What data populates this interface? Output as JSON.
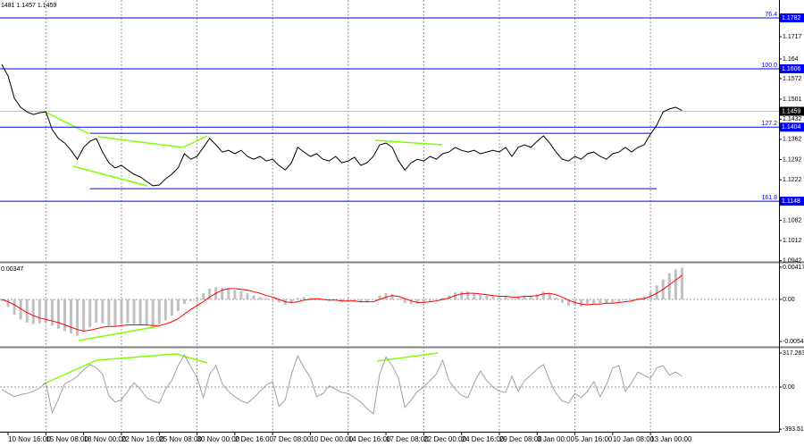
{
  "chart_data": [
    {
      "type": "line",
      "title": "1481 1.1457 1.1459",
      "categories": [
        null,
        "10 Nov 16:00",
        null,
        null,
        null,
        null,
        null,
        "15 Nov 08:00",
        null,
        null,
        null,
        null,
        null,
        "18 Nov 00:00",
        null,
        null,
        null,
        null,
        null,
        "22 Nov 16:00",
        null,
        null,
        null,
        null,
        null,
        "25 Nov 08:00",
        null,
        null,
        null,
        null,
        null,
        "30 Nov 00:00",
        null,
        null,
        null,
        null,
        null,
        "2 Dec 16:00",
        null,
        null,
        null,
        null,
        null,
        "7 Dec 08:00",
        null,
        null,
        null,
        null,
        null,
        "10 Dec 00:00",
        null,
        null,
        null,
        null,
        null,
        "14 Dec 16:00",
        null,
        null,
        null,
        null,
        null,
        "17 Dec 08:00",
        null,
        null,
        null,
        null,
        null,
        "22 Dec 00:00",
        null,
        null,
        null,
        null,
        null,
        "24 Dec 16:00",
        null,
        null,
        null,
        null,
        null,
        "29 Dec 08:00",
        null,
        null,
        null,
        null,
        null,
        "3 Jan 00:00",
        null,
        null,
        null,
        null,
        null,
        "5 Jan 16:00",
        null,
        null,
        null,
        null,
        null,
        "10 Jan 08:00",
        null,
        null,
        null,
        null,
        null,
        "13 Jan 00:00",
        null,
        null,
        null,
        null,
        null
      ],
      "series": [
        {
          "color": "#000000",
          "values": [
            1.1621,
            1.1581,
            1.1504,
            1.1473,
            1.1457,
            1.1448,
            1.1454,
            1.1457,
            1.1396,
            1.1365,
            1.1349,
            1.1324,
            1.1293,
            1.1334,
            1.1355,
            1.1365,
            1.1318,
            1.1281,
            1.1263,
            1.1272,
            1.1256,
            1.1241,
            1.1232,
            1.1216,
            1.1201,
            1.1204,
            1.1225,
            1.1241,
            1.1263,
            1.1312,
            1.1293,
            1.1303,
            1.1334,
            1.1365,
            1.1343,
            1.1318,
            1.1324,
            1.1312,
            1.1324,
            1.1303,
            1.1293,
            1.1303,
            1.1287,
            1.1293,
            1.1272,
            1.1256,
            1.1281,
            1.1334,
            1.1318,
            1.1303,
            1.1312,
            1.1293,
            1.1287,
            1.1303,
            1.1281,
            1.1287,
            1.13,
            1.1272,
            1.1281,
            1.1303,
            1.1343,
            1.1349,
            1.1334,
            1.1287,
            1.1256,
            1.1281,
            1.1293,
            1.1287,
            1.1303,
            1.1293,
            1.1312,
            1.1318,
            1.1334,
            1.1324,
            1.1318,
            1.1324,
            1.1312,
            1.1318,
            1.1324,
            1.1318,
            1.1334,
            1.1303,
            1.1334,
            1.1343,
            1.1334,
            1.1355,
            1.1374,
            1.1349,
            1.1318,
            1.1293,
            1.1287,
            1.1303,
            1.1293,
            1.1312,
            1.1318,
            1.1303,
            1.1293,
            1.1312,
            1.1318,
            1.1334,
            1.1318,
            1.1334,
            1.1343,
            1.138,
            1.1411,
            1.1457,
            1.1467,
            1.1473,
            1.1462
          ]
        }
      ],
      "ylim": [
        1.0938,
        1.1844
      ],
      "yticks": [
        1.1717,
        1.164,
        1.1572,
        1.1501,
        1.1432,
        1.1362,
        1.1292,
        1.1222,
        1.1082,
        1.1012,
        1.0942
      ],
      "levels": [
        {
          "value": 1.1782,
          "label": "76.4"
        },
        {
          "value": 1.1606,
          "label": "100.0"
        },
        {
          "value": 1.1404,
          "label": "127.2"
        },
        {
          "value": 1.1148,
          "label": "161.8"
        }
      ],
      "level_color": "#0000ff",
      "current_price": 1.1459,
      "support_lines": [
        {
          "price": 1.1383,
          "from": 14,
          "to": 103
        },
        {
          "price": 1.1191,
          "from": 14,
          "to": 104
        }
      ]
    },
    {
      "type": "macd",
      "title": "0.00347",
      "series": [
        {
          "color": "#c0c0c0",
          "values": [
            -0.0002,
            -0.001,
            -0.002,
            -0.0026,
            -0.003,
            -0.0032,
            -0.0031,
            -0.003,
            -0.0034,
            -0.0038,
            -0.0041,
            -0.0044,
            -0.0047,
            -0.0042,
            -0.0036,
            -0.003,
            -0.0031,
            -0.0034,
            -0.0035,
            -0.0032,
            -0.0031,
            -0.0032,
            -0.0033,
            -0.0034,
            -0.0035,
            -0.0032,
            -0.0027,
            -0.0021,
            -0.0015,
            -0.0006,
            -0.0002,
            0.0002,
            0.0008,
            0.0014,
            0.0016,
            0.0015,
            0.0014,
            0.0012,
            0.0011,
            0.0008,
            0.0005,
            0.0003,
            0.0001,
            -0.0001,
            -0.0004,
            -0.0007,
            -0.0005,
            0.0002,
            0.0003,
            0.0002,
            0.0001,
            -0.0001,
            -0.0002,
            -0.0001,
            -0.0003,
            -0.0003,
            -0.0002,
            -0.0004,
            -0.0004,
            -0.0001,
            0.0005,
            0.0008,
            0.0007,
            0.0001,
            -0.0005,
            -0.0006,
            -0.0005,
            -0.0004,
            -0.0002,
            -0.0001,
            0.0002,
            0.0005,
            0.0009,
            0.001,
            0.001,
            0.0008,
            0.0006,
            0.0005,
            0.0004,
            0.0003,
            0.0004,
            0.0001,
            0.0003,
            0.0005,
            0.0005,
            0.0007,
            0.001,
            0.0008,
            0.0002,
            -0.0004,
            -0.0008,
            -0.0008,
            -0.0009,
            -0.0006,
            -0.0005,
            -0.0005,
            -0.0006,
            -0.0004,
            -0.0003,
            -0.0001,
            -0.0001,
            0.0002,
            0.0004,
            0.001,
            0.0018,
            0.0026,
            0.0034,
            0.0039,
            0.0041
          ]
        },
        {
          "color": "#ff0000",
          "values": [
            0.0,
            -0.0003,
            -0.0007,
            -0.0012,
            -0.0017,
            -0.0021,
            -0.0024,
            -0.0026,
            -0.0028,
            -0.003,
            -0.0033,
            -0.0036,
            -0.0039,
            -0.0041,
            -0.004,
            -0.0038,
            -0.0036,
            -0.0035,
            -0.0035,
            -0.0034,
            -0.0033,
            -0.0033,
            -0.0033,
            -0.0033,
            -0.0034,
            -0.0034,
            -0.0032,
            -0.0029,
            -0.0025,
            -0.0019,
            -0.0013,
            -0.0008,
            -0.0003,
            0.0003,
            0.0008,
            0.0012,
            0.0014,
            0.0014,
            0.0013,
            0.0012,
            0.001,
            0.0008,
            0.0005,
            0.0003,
            0.0,
            -0.0003,
            -0.0004,
            -0.0003,
            -0.0001,
            0.0,
            0.0001,
            0.0,
            -0.0001,
            -0.0001,
            -0.0002,
            -0.0002,
            -0.0002,
            -0.0003,
            -0.0003,
            -0.0003,
            0.0,
            0.0003,
            0.0005,
            0.0004,
            0.0001,
            -0.0002,
            -0.0004,
            -0.0004,
            -0.0003,
            -0.0002,
            0.0,
            0.0002,
            0.0005,
            0.0007,
            0.0008,
            0.0008,
            0.0007,
            0.0006,
            0.0005,
            0.0004,
            0.0004,
            0.0003,
            0.0003,
            0.0004,
            0.0004,
            0.0005,
            0.0007,
            0.0008,
            0.0006,
            0.0003,
            -0.0001,
            -0.0004,
            -0.0006,
            -0.0007,
            -0.0006,
            -0.0006,
            -0.0005,
            -0.0005,
            -0.0004,
            -0.0003,
            -0.0002,
            0.0,
            0.0001,
            0.0004,
            0.0008,
            0.0013,
            0.0019,
            0.0025,
            0.0031
          ]
        }
      ],
      "ylim": [
        -0.00614,
        0.00463
      ],
      "yticks": [
        0.00417,
        {
          "value": 0,
          "label": "0.00"
        },
        -0.00545
      ],
      "zero_line": true
    },
    {
      "type": "line",
      "series": [
        {
          "color": "#a0a0a0",
          "values": [
            -20,
            -60,
            -90,
            -70,
            -60,
            -40,
            -10,
            40,
            -240,
            -110,
            30,
            60,
            100,
            160,
            210,
            180,
            120,
            -80,
            -140,
            -120,
            -40,
            40,
            -20,
            -100,
            -130,
            -150,
            -20,
            60,
            200,
            300,
            190,
            90,
            -100,
            120,
            200,
            30,
            -40,
            -90,
            -130,
            -150,
            -100,
            -40,
            20,
            50,
            -180,
            -120,
            120,
            290,
            180,
            90,
            -90,
            -60,
            10,
            -20,
            -50,
            -60,
            -100,
            -140,
            -200,
            -250,
            120,
            280,
            200,
            80,
            -190,
            -120,
            -40,
            0,
            60,
            120,
            250,
            60,
            -20,
            -80,
            -100,
            40,
            150,
            60,
            0,
            -40,
            -50,
            100,
            -40,
            60,
            110,
            170,
            210,
            60,
            -60,
            -130,
            -150,
            -60,
            -100,
            -40,
            50,
            -90,
            20,
            180,
            200,
            -40,
            40,
            140,
            110,
            80,
            180,
            200,
            110,
            140,
            100
          ]
        }
      ],
      "ylim": [
        -417,
        359
      ],
      "yticks": [
        317.2639,
        {
          "value": 0,
          "label": "0.00"
        },
        -393.514
      ],
      "zero_line": true
    }
  ]
}
